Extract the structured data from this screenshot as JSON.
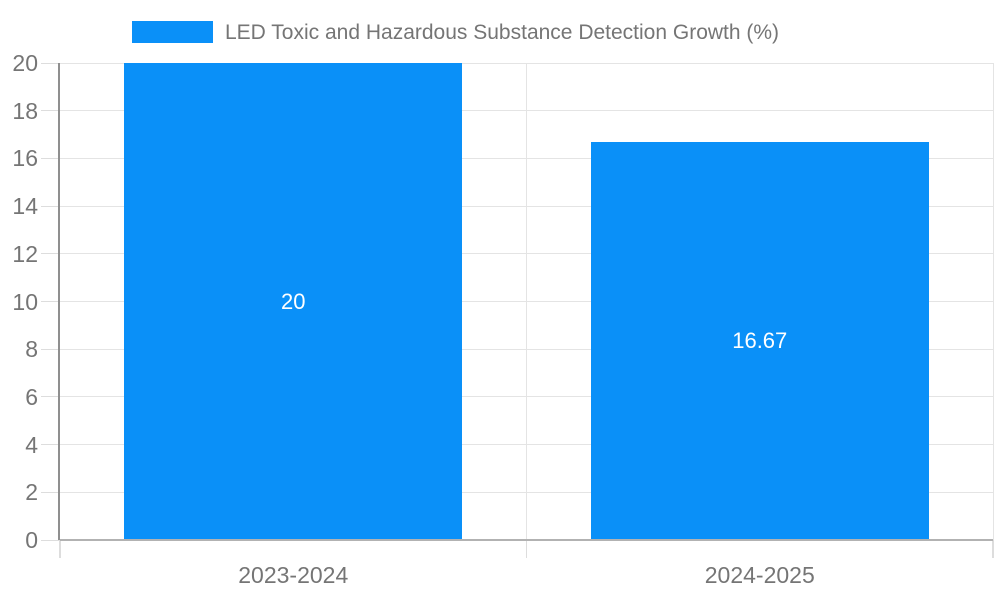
{
  "legend": {
    "label": "LED Toxic and Hazardous Substance Detection Growth (%)"
  },
  "colors": {
    "bar": "#0a90f8",
    "grid": "#e4e4e4",
    "axis_left": "#8f8f8f",
    "axis_bottom": "#b2b2b2",
    "tick": "#dddddd",
    "text": "#757575",
    "bar_label": "#ffffff",
    "background": "#ffffff"
  },
  "chart_data": {
    "type": "bar",
    "title": "LED Toxic and Hazardous Substance Detection Growth (%)",
    "categories": [
      "2023-2024",
      "2024-2025"
    ],
    "values": [
      20,
      16.67
    ],
    "data_labels": [
      "20",
      "16.67"
    ],
    "xlabel": "",
    "ylabel": "",
    "ylim": [
      0,
      20
    ],
    "yticks": [
      0,
      2,
      4,
      6,
      8,
      10,
      12,
      14,
      16,
      18,
      20
    ],
    "grid": true,
    "legend_position": "top",
    "series_name": "LED Toxic and Hazardous Substance Detection Growth (%)"
  }
}
